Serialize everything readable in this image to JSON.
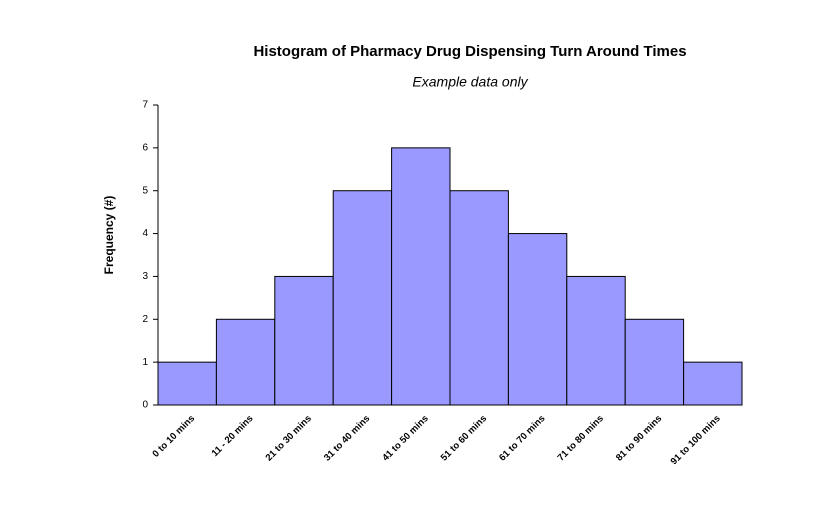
{
  "chart_data": {
    "type": "bar",
    "title": "Histogram of Pharmacy Drug Dispensing Turn Around Times",
    "subtitle": "Example data only",
    "y_label": "Frequency (#)",
    "categories": [
      "0 to 10 mins",
      "11 - 20 mins",
      "21 to 30 mins",
      "31 to 40 mins",
      "41 to 50 mins",
      "51 to 60 mins",
      "61 to 70 mins",
      "71 to 80 mins",
      "81 to 90 mins",
      "91 to 100 mins"
    ],
    "values": [
      1,
      2,
      3,
      5,
      6,
      5,
      4,
      3,
      2,
      1
    ],
    "color": "#9999ff",
    "ylim": [
      0,
      7
    ],
    "yticks": [
      0,
      1,
      2,
      3,
      4,
      5,
      6,
      7
    ],
    "grid": false
  }
}
